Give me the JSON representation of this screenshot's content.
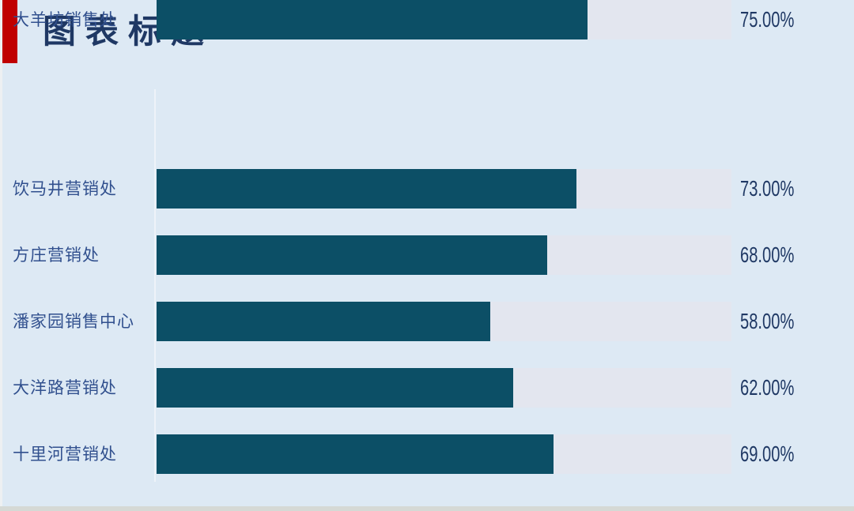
{
  "slide": {
    "title": "图表标题"
  },
  "colors": {
    "background": "#dde9f4",
    "accent_red": "#c00000",
    "bar_fill": "#0c4f66",
    "bar_track": "#e3e6ef",
    "title_text": "#1f3864",
    "category_text": "#31508e",
    "value_text": "#1f3864",
    "axis_line": "#eef3f9",
    "bottom_strip": "#d5d9d5"
  },
  "chart_data": {
    "type": "bar",
    "orientation": "horizontal",
    "title": "图表标题",
    "categories": [
      "饮马井营销处",
      "方庄营销处",
      "潘家园销售中心",
      "大洋路营销处",
      "十里河营销处",
      "大羊坊销售处"
    ],
    "values": [
      73,
      68,
      58,
      62,
      69,
      75
    ],
    "value_labels": [
      "73.00%",
      "68.00%",
      "58.00%",
      "62.00%",
      "69.00%",
      "75.00%"
    ],
    "xlabel": "",
    "ylabel": "",
    "xlim": [
      0,
      100
    ],
    "grid": false,
    "legend": false,
    "value_label_position": "right-of-track"
  }
}
